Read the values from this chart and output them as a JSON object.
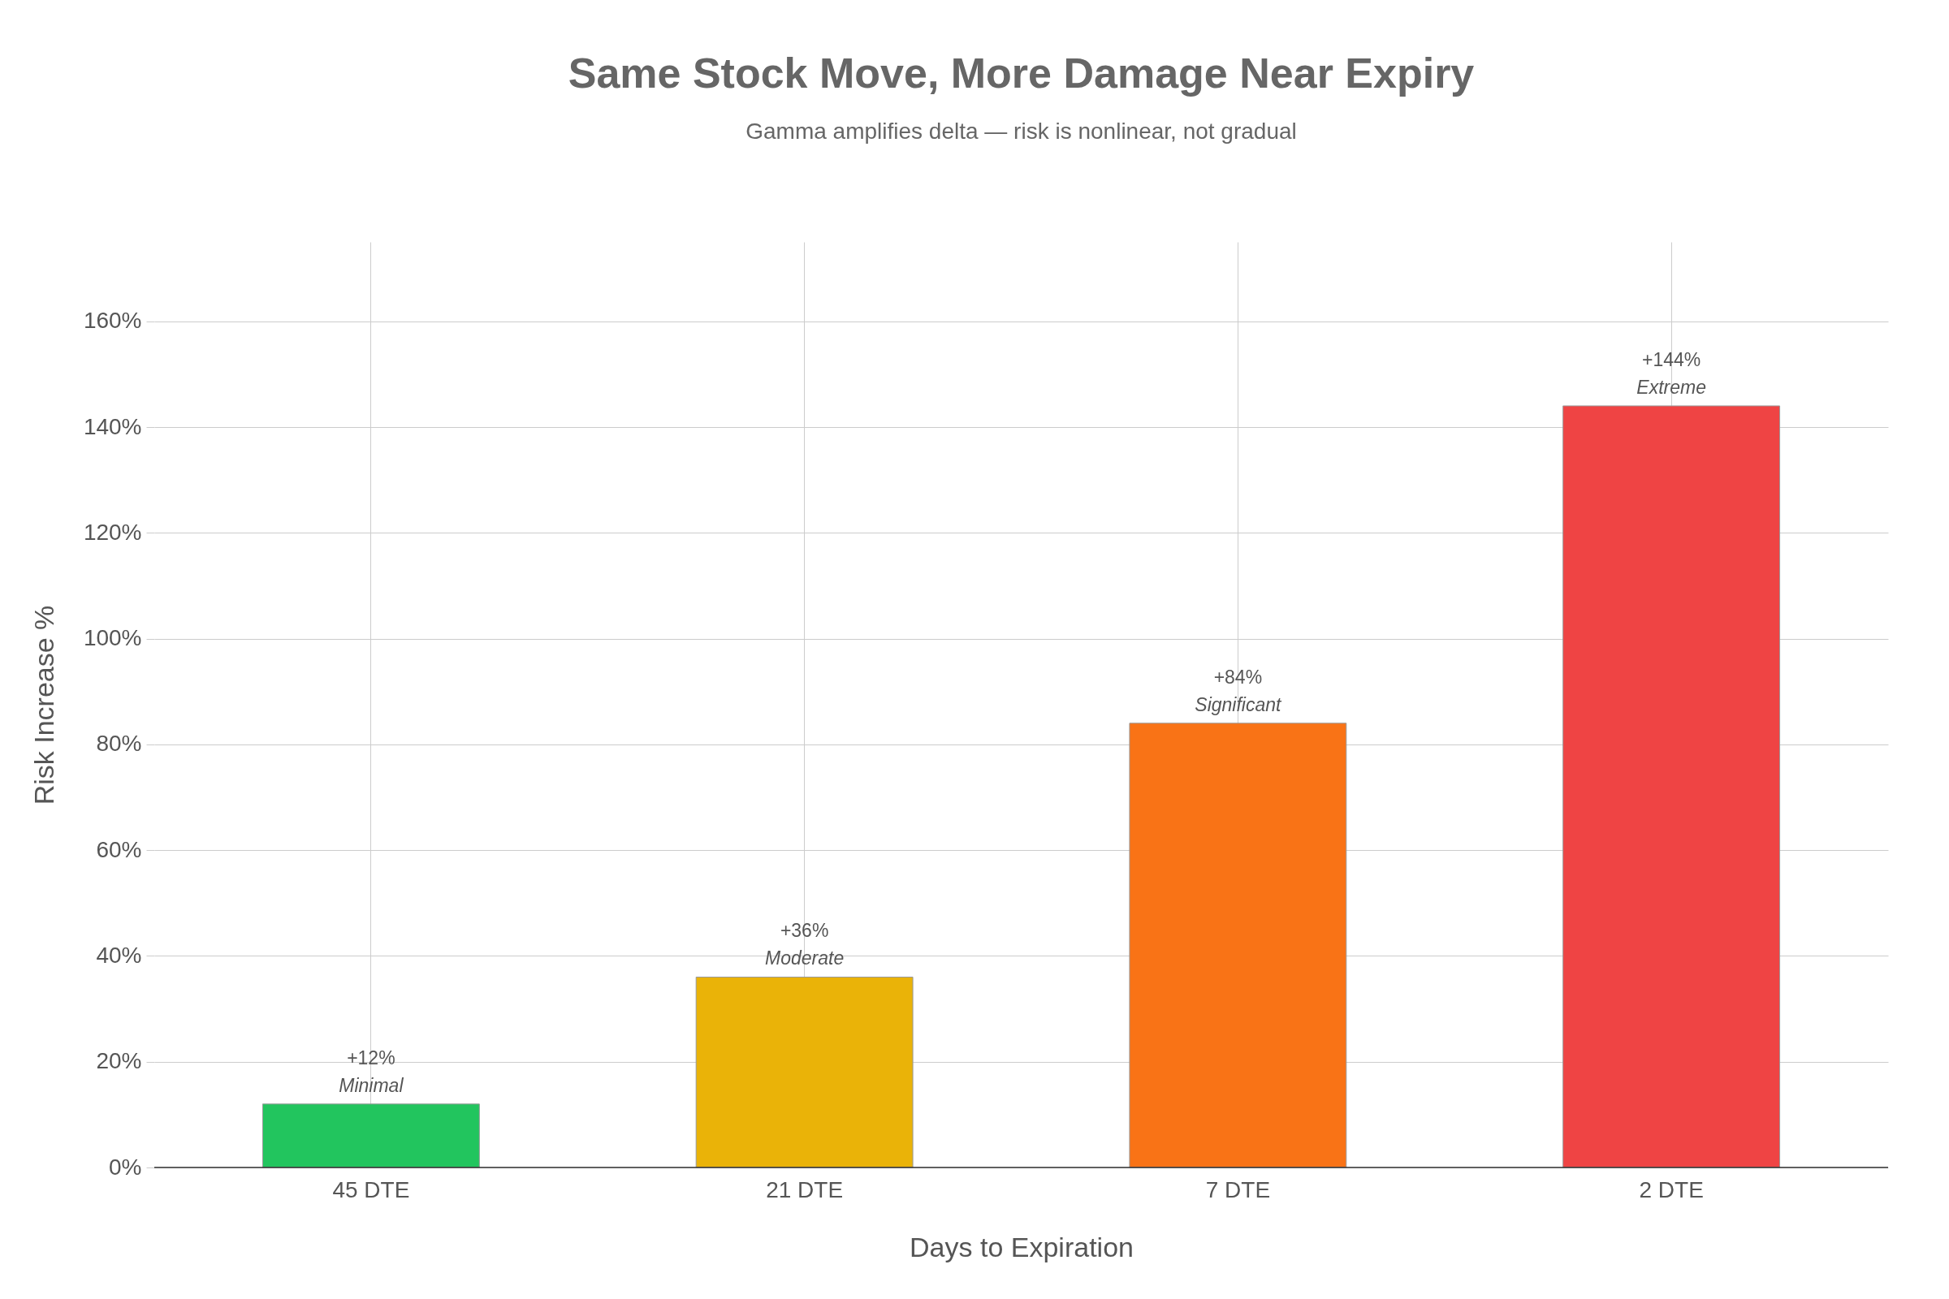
{
  "chart_data": {
    "type": "bar",
    "title": "Same Stock Move, More Damage Near Expiry",
    "subtitle": "Gamma amplifies delta — risk is nonlinear, not gradual",
    "xlabel": "Days to Expiration",
    "ylabel": "Risk Increase %",
    "categories": [
      "45 DTE",
      "21 DTE",
      "7 DTE",
      "2 DTE"
    ],
    "values": [
      12,
      36,
      84,
      144
    ],
    "colors": [
      "#22c55e",
      "#eab308",
      "#f97316",
      "#ef4444"
    ],
    "value_labels": [
      "+12%",
      "+36%",
      "+84%",
      "+144%"
    ],
    "annotations": [
      {
        "text": "Minimal",
        "x": "45 DTE",
        "y": 12
      },
      {
        "text": "Moderate",
        "x": "21 DTE",
        "y": 36
      },
      {
        "text": "Significant",
        "x": "7 DTE",
        "y": 84
      },
      {
        "text": "Extreme",
        "x": "2 DTE",
        "y": 144
      }
    ],
    "ylim": [
      0,
      175
    ],
    "yticks": [
      {
        "value": 0,
        "label": "0%"
      },
      {
        "value": 20,
        "label": "20%"
      },
      {
        "value": 40,
        "label": "40%"
      },
      {
        "value": 60,
        "label": "60%"
      },
      {
        "value": 80,
        "label": "80%"
      },
      {
        "value": 100,
        "label": "100%"
      },
      {
        "value": 120,
        "label": "120%"
      },
      {
        "value": 140,
        "label": "140%"
      },
      {
        "value": 160,
        "label": "160%"
      }
    ],
    "grid": true,
    "legend": false
  }
}
